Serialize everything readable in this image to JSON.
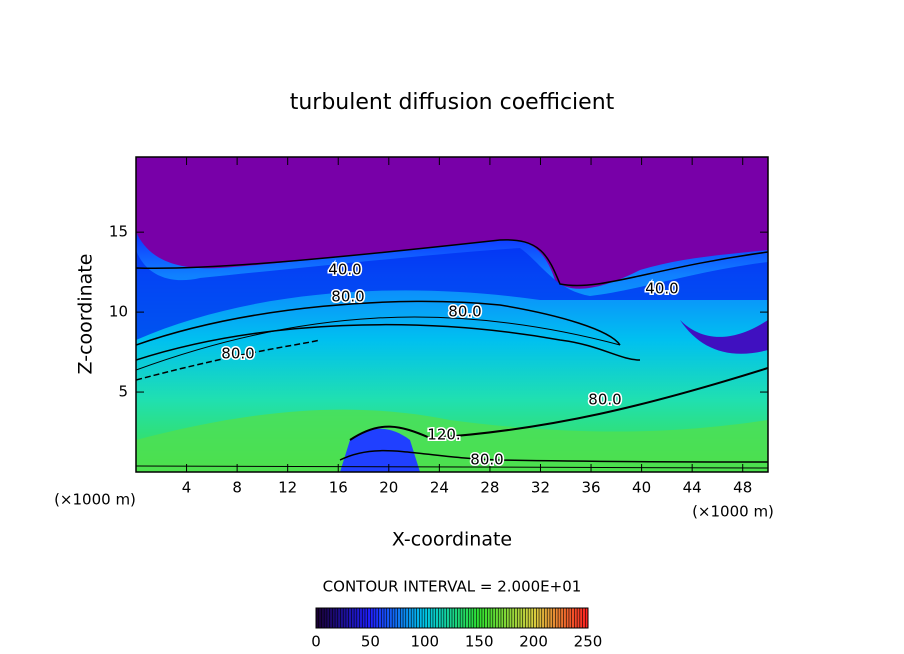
{
  "chart_data": {
    "type": "contour",
    "title": "turbulent diffusion coefficient",
    "xlabel": "X-coordinate",
    "ylabel": "Z-coordinate",
    "y_unit_label": "(×1000 m)",
    "x_unit_label": "(×1000 m)",
    "xlim": [
      0,
      50
    ],
    "xticks": [
      4,
      8,
      12,
      16,
      20,
      24,
      28,
      32,
      36,
      40,
      44,
      48
    ],
    "ylim": [
      0,
      19.7
    ],
    "yticks": [
      5,
      10,
      15
    ],
    "contour_labels": [
      "40.0",
      "80.0",
      "80.0",
      "80.0",
      "80.0",
      "40.0",
      "120.",
      "80.0"
    ],
    "contour_interval_label": "CONTOUR INTERVAL = 2.000E+01",
    "colorbar": {
      "lim": [
        0,
        250
      ],
      "ticks": [
        0,
        50,
        100,
        150,
        200,
        250
      ],
      "colormap": [
        "#1a0030",
        "#2020ff",
        "#00c8e8",
        "#30e030",
        "#d8d040",
        "#ff2020"
      ]
    }
  }
}
